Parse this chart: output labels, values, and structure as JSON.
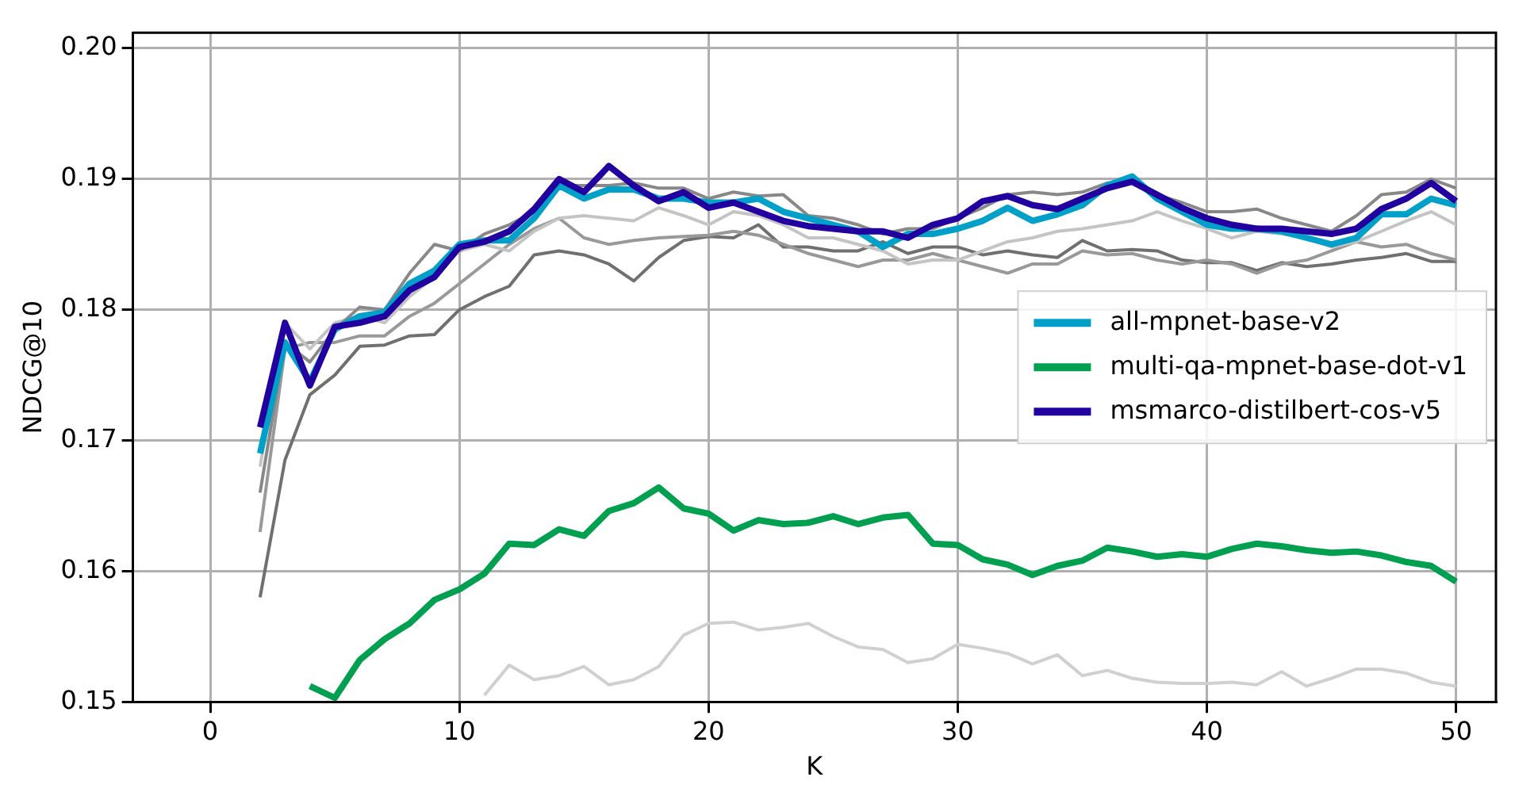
{
  "chart_data": {
    "type": "line",
    "xlabel": "K",
    "ylabel": "NDCG@10",
    "x": [
      2,
      3,
      4,
      5,
      6,
      7,
      8,
      9,
      10,
      11,
      12,
      13,
      14,
      15,
      16,
      17,
      18,
      19,
      20,
      21,
      22,
      23,
      24,
      25,
      26,
      27,
      28,
      29,
      30,
      31,
      32,
      33,
      34,
      35,
      36,
      37,
      38,
      39,
      40,
      41,
      42,
      43,
      44,
      45,
      46,
      47,
      48,
      49,
      50
    ],
    "xlim": [
      -3.1,
      51.6
    ],
    "xticks": [
      0,
      10,
      20,
      30,
      40,
      50
    ],
    "ylim": [
      0.15,
      0.2012
    ],
    "yticks": [
      0.15,
      0.16,
      0.17,
      0.18,
      0.19,
      {
        "value": 0.2,
        "label": "0.20"
      }
    ],
    "grid": true,
    "legend": "right",
    "marker": "none",
    "line_style": "solid",
    "series": [
      {
        "color": "#d0d0d0",
        "values": [
          null,
          null,
          null,
          null,
          null,
          null,
          null,
          null,
          null,
          0.1505,
          0.1528,
          0.1517,
          0.152,
          0.1527,
          0.1513,
          0.1517,
          0.1527,
          0.1551,
          0.156,
          0.1561,
          0.1555,
          0.1557,
          0.156,
          0.155,
          0.1542,
          0.154,
          0.153,
          0.1533,
          0.1544,
          0.1541,
          0.1537,
          0.1529,
          0.1536,
          0.152,
          0.1524,
          0.1518,
          0.1515,
          0.1514,
          0.1514,
          0.1515,
          0.1513,
          0.1523,
          0.1512,
          0.1518,
          0.1525,
          0.1525,
          0.1522,
          0.1515,
          0.1512
        ]
      },
      {
        "color": "#707070",
        "values": [
          0.158,
          0.1685,
          0.1735,
          0.175,
          0.1772,
          0.1773,
          0.178,
          0.1781,
          0.18,
          0.181,
          0.1818,
          0.1842,
          0.1845,
          0.1842,
          0.1835,
          0.1822,
          0.184,
          0.1853,
          0.1856,
          0.1855,
          0.1865,
          0.1848,
          0.1848,
          0.1845,
          0.1845,
          0.1852,
          0.1843,
          0.1848,
          0.1848,
          0.1842,
          0.1845,
          0.1842,
          0.184,
          0.1853,
          0.1845,
          0.1846,
          0.1845,
          0.1838,
          0.1836,
          0.1836,
          0.183,
          0.1836,
          0.1833,
          0.1835,
          0.1838,
          0.184,
          0.1843,
          0.1837,
          0.1837
        ]
      },
      {
        "color": "#999999",
        "values": [
          0.163,
          0.177,
          0.1775,
          0.1775,
          0.178,
          0.178,
          0.1795,
          0.1805,
          0.182,
          0.1835,
          0.185,
          0.1862,
          0.187,
          0.1855,
          0.185,
          0.1853,
          0.1855,
          0.1856,
          0.1857,
          0.186,
          0.1857,
          0.185,
          0.1843,
          0.1838,
          0.1833,
          0.1838,
          0.1838,
          0.1843,
          0.1838,
          0.1833,
          0.1828,
          0.1835,
          0.1835,
          0.1845,
          0.1842,
          0.1843,
          0.1838,
          0.1835,
          0.1838,
          0.1835,
          0.1828,
          0.1835,
          0.1838,
          0.1845,
          0.1852,
          0.1848,
          0.185,
          0.1843,
          0.1838
        ]
      },
      {
        "color": "#c4c4c4",
        "values": [
          0.168,
          0.179,
          0.177,
          0.179,
          0.1795,
          0.179,
          0.181,
          0.1825,
          0.1845,
          0.185,
          0.1845,
          0.186,
          0.187,
          0.1872,
          0.187,
          0.1868,
          0.1878,
          0.1872,
          0.1865,
          0.1875,
          0.1872,
          0.1865,
          0.1855,
          0.1855,
          0.185,
          0.1845,
          0.1835,
          0.1838,
          0.1838,
          0.1845,
          0.1852,
          0.1855,
          0.186,
          0.1862,
          0.1865,
          0.1868,
          0.1875,
          0.1868,
          0.1862,
          0.1855,
          0.186,
          0.1858,
          0.1855,
          0.1848,
          0.1852,
          0.186,
          0.1868,
          0.1875,
          0.1865
        ]
      },
      {
        "color": "#888888",
        "values": [
          0.166,
          0.1775,
          0.176,
          0.1785,
          0.1802,
          0.18,
          0.1828,
          0.185,
          0.1845,
          0.1858,
          0.1865,
          0.1875,
          0.1895,
          0.1895,
          0.1895,
          0.1897,
          0.1893,
          0.1893,
          0.1885,
          0.189,
          0.1887,
          0.1888,
          0.1872,
          0.187,
          0.1865,
          0.1858,
          0.1862,
          0.1862,
          0.187,
          0.1878,
          0.1888,
          0.189,
          0.1888,
          0.189,
          0.1897,
          0.1898,
          0.1888,
          0.1882,
          0.1875,
          0.1875,
          0.1877,
          0.187,
          0.1865,
          0.186,
          0.1872,
          0.1888,
          0.189,
          0.19,
          0.1893
        ]
      },
      {
        "name": "all-mpnet-base-v2",
        "color": "#00a0c8",
        "values": [
          0.169,
          0.1775,
          0.1745,
          0.1785,
          0.1795,
          0.1798,
          0.182,
          0.183,
          0.185,
          0.1853,
          0.1853,
          0.187,
          0.1895,
          0.1885,
          0.1892,
          0.1892,
          0.1885,
          0.1885,
          0.1882,
          0.1882,
          0.1885,
          0.1875,
          0.187,
          0.1865,
          0.186,
          0.1848,
          0.1858,
          0.1858,
          0.1862,
          0.1868,
          0.1878,
          0.1868,
          0.1873,
          0.188,
          0.1895,
          0.1902,
          0.1885,
          0.1875,
          0.1865,
          0.1862,
          0.1862,
          0.186,
          0.1855,
          0.185,
          0.1855,
          0.1873,
          0.1873,
          0.1885,
          0.188
        ]
      },
      {
        "name": "multi-qa-mpnet-base-dot-v1",
        "color": "#00a050",
        "values": [
          null,
          null,
          0.1512,
          0.1503,
          0.1532,
          0.1548,
          0.156,
          0.1578,
          0.1586,
          0.1598,
          0.1621,
          0.162,
          0.1632,
          0.1627,
          0.1646,
          0.1652,
          0.1664,
          0.1648,
          0.1644,
          0.1631,
          0.1639,
          0.1636,
          0.1637,
          0.1642,
          0.1636,
          0.1641,
          0.1643,
          0.1621,
          0.162,
          0.1609,
          0.1605,
          0.1597,
          0.1604,
          0.1608,
          0.1618,
          0.1615,
          0.1611,
          0.1613,
          0.1611,
          0.1617,
          0.1621,
          0.1619,
          0.1616,
          0.1614,
          0.1615,
          0.1612,
          0.1607,
          0.1604,
          0.1592
        ]
      },
      {
        "name": "msmarco-distilbert-cos-v5",
        "color": "#2200a0",
        "values": [
          0.171,
          0.179,
          0.1742,
          0.1787,
          0.179,
          0.1795,
          0.1815,
          0.1825,
          0.1848,
          0.1852,
          0.186,
          0.1877,
          0.19,
          0.189,
          0.191,
          0.1895,
          0.1883,
          0.189,
          0.1878,
          0.1882,
          0.1875,
          0.1868,
          0.1864,
          0.1862,
          0.186,
          0.186,
          0.1855,
          0.1865,
          0.187,
          0.1883,
          0.1887,
          0.188,
          0.1877,
          0.1885,
          0.1893,
          0.1898,
          0.1888,
          0.1878,
          0.187,
          0.1865,
          0.1862,
          0.1862,
          0.186,
          0.1858,
          0.1862,
          0.1877,
          0.1885,
          0.1897,
          0.1883
        ]
      }
    ]
  }
}
